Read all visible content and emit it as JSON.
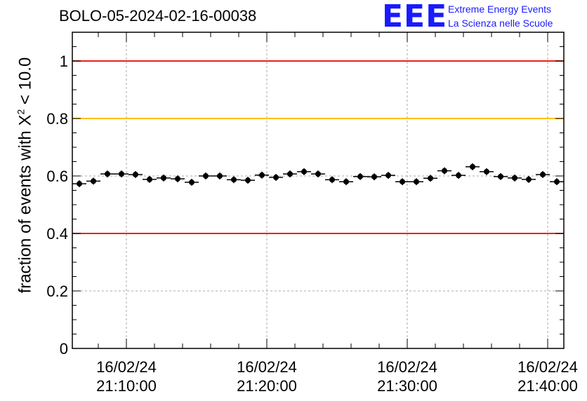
{
  "header": {
    "title": "BOLO-05-2024-02-16-00038"
  },
  "logo": {
    "mark": "EEE",
    "line1": "Extreme Energy Events",
    "line2": "La Scienza nelle Scuole",
    "color": "#1a1aff"
  },
  "chart_data": {
    "type": "scatter",
    "title": "BOLO-05-2024-02-16-00038",
    "ylabel_prefix": "fraction of events with ",
    "ylabel_symbol": "X",
    "ylabel_sup": "2",
    "ylabel_suffix": " < 10.0",
    "ylim": [
      0,
      1.1
    ],
    "yticks": [
      0,
      0.2,
      0.4,
      0.6,
      0.8,
      1
    ],
    "ytick_labels": [
      "0",
      "0.2",
      "0.4",
      "0.6",
      "0.8",
      "1"
    ],
    "xlim": [
      "21:06:09",
      "21:41:09"
    ],
    "xticks": [
      "21:10:00",
      "21:20:00",
      "21:30:00",
      "21:40:00"
    ],
    "xtick_labels": [
      [
        "16/02/24",
        "21:10:00"
      ],
      [
        "16/02/24",
        "21:20:00"
      ],
      [
        "16/02/24",
        "21:30:00"
      ],
      [
        "16/02/24",
        "21:40:00"
      ]
    ],
    "grid": true,
    "reference_lines": [
      {
        "y": 1.0,
        "color": "#e8221c"
      },
      {
        "y": 0.8,
        "color": "#ffc000"
      },
      {
        "y": 0.4,
        "color": "#e8221c"
      }
    ],
    "series": [
      {
        "marker_color": "#000000",
        "x": [
          "21:06:39",
          "21:07:39",
          "21:08:39",
          "21:09:39",
          "21:10:39",
          "21:11:39",
          "21:12:39",
          "21:13:39",
          "21:14:39",
          "21:15:39",
          "21:16:39",
          "21:17:39",
          "21:18:39",
          "21:19:39",
          "21:20:39",
          "21:21:39",
          "21:22:39",
          "21:23:39",
          "21:24:39",
          "21:25:39",
          "21:26:39",
          "21:27:39",
          "21:28:39",
          "21:29:39",
          "21:30:39",
          "21:31:39",
          "21:32:39",
          "21:33:39",
          "21:34:39",
          "21:35:39",
          "21:36:39",
          "21:37:39",
          "21:38:39",
          "21:39:39",
          "21:40:39"
        ],
        "y": [
          0.573,
          0.582,
          0.607,
          0.607,
          0.605,
          0.588,
          0.593,
          0.59,
          0.578,
          0.6,
          0.6,
          0.587,
          0.585,
          0.603,
          0.595,
          0.607,
          0.615,
          0.607,
          0.587,
          0.58,
          0.598,
          0.597,
          0.602,
          0.58,
          0.58,
          0.592,
          0.618,
          0.602,
          0.632,
          0.615,
          0.598,
          0.593,
          0.588,
          0.605,
          0.58
        ],
        "x_halfwidth_seconds": 30,
        "y_error": 0.012
      }
    ]
  }
}
